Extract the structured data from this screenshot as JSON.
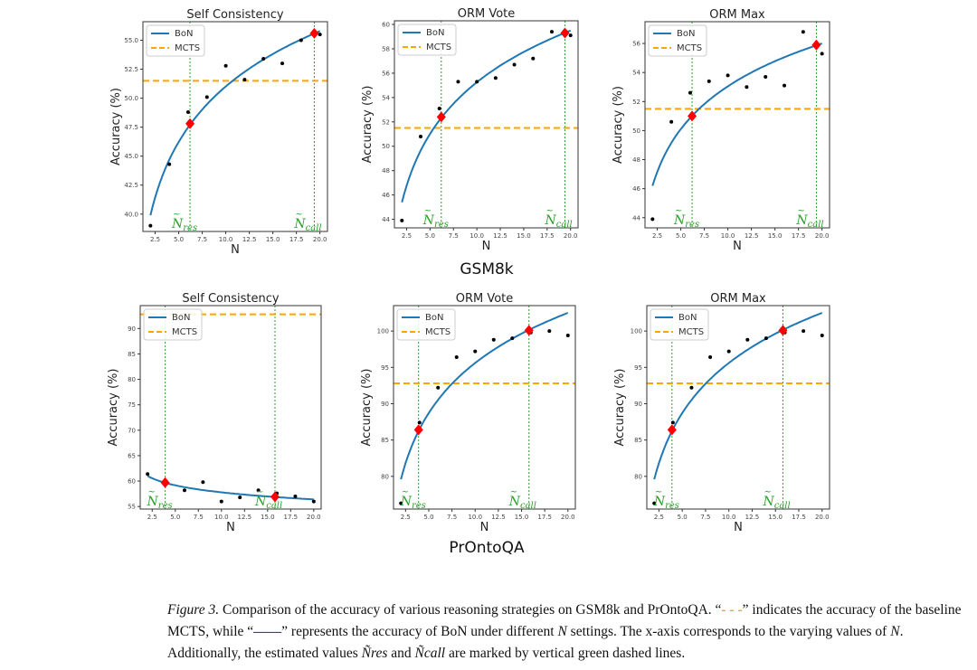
{
  "row_labels": [
    "GSM8k",
    "PrOntoQA"
  ],
  "legend": {
    "bon": "BoN",
    "mcts": "MCTS"
  },
  "markers": {
    "n_res": "res",
    "n_call": "call",
    "n_symbol": "N"
  },
  "colors": {
    "bon": "#1f77b4",
    "mcts": "#ffa500",
    "vline": "#2ca02c",
    "marker": "#ff0000",
    "points": "#000000"
  },
  "caption": {
    "fig_label": "Figure 3.",
    "part1": " Comparison of the accuracy of various reasoning strategies on GSM8k and PrOntoQA. “",
    "dash_sym": "- - -",
    "part2": "” indicates the accuracy of the baseline MCTS, while “",
    "line_sym": "——",
    "part3": "” represents the accuracy of BoN under different ",
    "n": "N",
    "part4": " settings. The x-axis corresponds to the varying values of ",
    "part5": ". Additionally, the estimated values ",
    "nres": "Ñres",
    "and": " and ",
    "ncall": "Ñcall",
    "part6": " are marked by vertical green dashed lines."
  },
  "chart_data": [
    {
      "type": "scatter+line",
      "dataset": "GSM8k",
      "title": "Self Consistency",
      "xlabel": "N",
      "ylabel": "Accuracy (%)",
      "xlim": [
        1.2,
        20.8
      ],
      "ylim": [
        38.5,
        56.6
      ],
      "xticks": [
        2.5,
        5.0,
        7.5,
        10.0,
        12.5,
        15.0,
        17.5,
        20.0
      ],
      "yticks": [
        40.0,
        42.5,
        45.0,
        47.5,
        50.0,
        52.5,
        55.0
      ],
      "ydec": 1,
      "points": [
        [
          2,
          39.0
        ],
        [
          4,
          44.3
        ],
        [
          6,
          48.8
        ],
        [
          8,
          50.1
        ],
        [
          10,
          52.8
        ],
        [
          12,
          51.6
        ],
        [
          14,
          53.4
        ],
        [
          16,
          53.0
        ],
        [
          18,
          55.0
        ],
        [
          20,
          55.5
        ]
      ],
      "bon_fit": {
        "y_at_2": 39.9,
        "y_at_20": 55.8
      },
      "mcts": 51.5,
      "n_res": [
        6.2,
        47.8
      ],
      "n_call": [
        19.4,
        55.6
      ]
    },
    {
      "type": "scatter+line",
      "dataset": "GSM8k",
      "title": "ORM Vote",
      "xlabel": "N",
      "ylabel": "Accuracy (%)",
      "xlim": [
        1.2,
        20.8
      ],
      "ylim": [
        43.3,
        60.3
      ],
      "xticks": [
        2.5,
        5.0,
        7.5,
        10.0,
        12.5,
        15.0,
        17.5,
        20.0
      ],
      "yticks": [
        44,
        46,
        48,
        50,
        52,
        54,
        56,
        58,
        60
      ],
      "ydec": 0,
      "points": [
        [
          2,
          43.9
        ],
        [
          4,
          50.8
        ],
        [
          6,
          53.1
        ],
        [
          8,
          55.3
        ],
        [
          10,
          55.3
        ],
        [
          12,
          55.6
        ],
        [
          14,
          56.7
        ],
        [
          16,
          57.2
        ],
        [
          18,
          59.4
        ],
        [
          20,
          59.1
        ]
      ],
      "bon_fit": {
        "y_at_2": 45.4,
        "y_at_20": 59.5
      },
      "mcts": 51.5,
      "n_res": [
        6.2,
        52.4
      ],
      "n_call": [
        19.4,
        59.3
      ]
    },
    {
      "type": "scatter+line",
      "dataset": "GSM8k",
      "title": "ORM Max",
      "xlabel": "N",
      "ylabel": "Accuracy (%)",
      "xlim": [
        1.2,
        20.8
      ],
      "ylim": [
        43.3,
        57.5
      ],
      "xticks": [
        2.5,
        5.0,
        7.5,
        10.0,
        12.5,
        15.0,
        17.5,
        20.0
      ],
      "yticks": [
        44,
        46,
        48,
        50,
        52,
        54,
        56
      ],
      "ydec": 0,
      "points": [
        [
          2,
          43.9
        ],
        [
          4,
          50.6
        ],
        [
          6,
          52.6
        ],
        [
          8,
          53.4
        ],
        [
          10,
          53.8
        ],
        [
          12,
          53.0
        ],
        [
          14,
          53.7
        ],
        [
          16,
          53.1
        ],
        [
          18,
          56.8
        ],
        [
          20,
          55.3
        ]
      ],
      "bon_fit": {
        "y_at_2": 46.2,
        "y_at_20": 56.0
      },
      "mcts": 51.5,
      "n_res": [
        6.2,
        51.0
      ],
      "n_call": [
        19.4,
        55.9
      ]
    },
    {
      "type": "scatter+line",
      "dataset": "PrOntoQA",
      "title": "Self Consistency",
      "xlabel": "N",
      "ylabel": "Accuracy (%)",
      "xlim": [
        1.2,
        20.8
      ],
      "ylim": [
        54.5,
        94.5
      ],
      "xticks": [
        2.5,
        5.0,
        7.5,
        10.0,
        12.5,
        15.0,
        17.5,
        20.0
      ],
      "yticks": [
        55,
        60,
        65,
        70,
        75,
        80,
        85,
        90
      ],
      "ydec": 0,
      "points": [
        [
          2,
          61.4
        ],
        [
          6,
          58.2
        ],
        [
          8,
          59.8
        ],
        [
          10,
          56.0
        ],
        [
          12,
          56.8
        ],
        [
          14,
          58.2
        ],
        [
          16,
          57.6
        ],
        [
          18,
          57.0
        ],
        [
          20,
          56.0
        ]
      ],
      "bon_fit": {
        "y_at_2": 61.0,
        "y_at_20": 56.4
      },
      "mcts": 92.8,
      "n_res": [
        3.9,
        59.7
      ],
      "n_call": [
        15.8,
        56.9
      ]
    },
    {
      "type": "scatter+line",
      "dataset": "PrOntoQA",
      "title": "ORM Vote",
      "xlabel": "N",
      "ylabel": "Accuracy (%)",
      "xlim": [
        1.2,
        20.8
      ],
      "ylim": [
        75.5,
        103.5
      ],
      "xticks": [
        2.5,
        5.0,
        7.5,
        10.0,
        12.5,
        15.0,
        17.5,
        20.0
      ],
      "yticks": [
        80,
        85,
        90,
        95,
        100
      ],
      "ydec": 0,
      "points": [
        [
          2,
          76.3
        ],
        [
          4,
          87.4
        ],
        [
          6,
          92.2
        ],
        [
          8,
          96.4
        ],
        [
          10,
          97.2
        ],
        [
          12,
          98.8
        ],
        [
          14,
          99.0
        ],
        [
          16,
          99.8
        ],
        [
          18,
          100.0
        ],
        [
          20,
          99.4
        ]
      ],
      "bon_fit": {
        "y_at_2": 79.6,
        "y_at_20": 102.5
      },
      "mcts": 92.8,
      "n_res": [
        3.9,
        86.4
      ],
      "n_call": [
        15.8,
        100.1
      ]
    },
    {
      "type": "scatter+line",
      "dataset": "PrOntoQA",
      "title": "ORM Max",
      "xlabel": "N",
      "ylabel": "Accuracy (%)",
      "xlim": [
        1.2,
        20.8
      ],
      "ylim": [
        75.5,
        103.5
      ],
      "xticks": [
        2.5,
        5.0,
        7.5,
        10.0,
        12.5,
        15.0,
        17.5,
        20.0
      ],
      "yticks": [
        80,
        85,
        90,
        95,
        100
      ],
      "ydec": 0,
      "points": [
        [
          2,
          76.3
        ],
        [
          4,
          87.4
        ],
        [
          6,
          92.2
        ],
        [
          8,
          96.4
        ],
        [
          10,
          97.2
        ],
        [
          12,
          98.8
        ],
        [
          14,
          99.0
        ],
        [
          16,
          99.8
        ],
        [
          18,
          100.0
        ],
        [
          20,
          99.4
        ]
      ],
      "bon_fit": {
        "y_at_2": 79.6,
        "y_at_20": 102.5
      },
      "mcts": 92.8,
      "n_res": [
        3.9,
        86.4
      ],
      "n_call": [
        15.8,
        100.1
      ]
    }
  ]
}
